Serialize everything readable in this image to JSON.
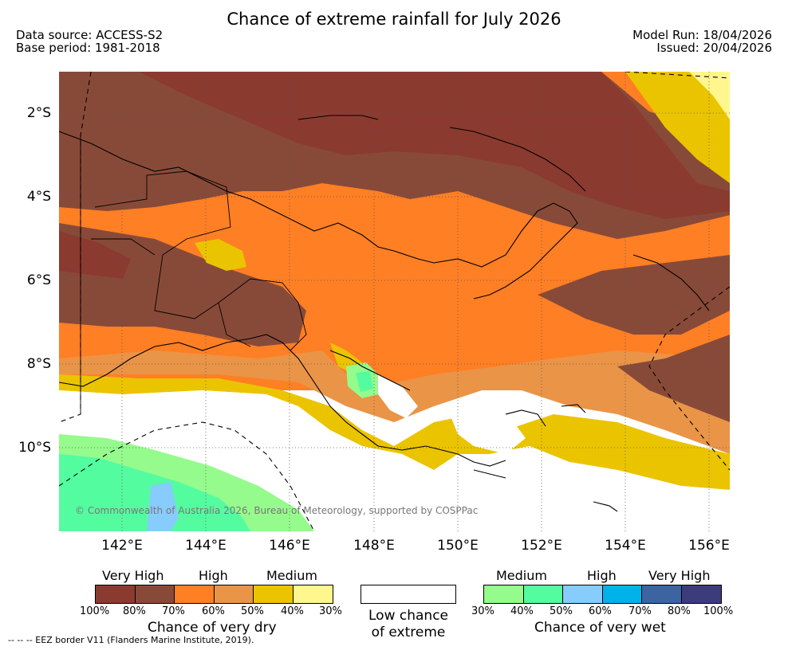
{
  "title": "Chance of extreme rainfall for July 2026",
  "meta": {
    "data_source": "Data source: ACCESS-S2",
    "base_period": "Base period: 1981-2018",
    "model_run": "Model Run: 18/04/2026",
    "issued": "Issued: 20/04/2026"
  },
  "map": {
    "lat_labels": [
      "2°S",
      "4°S",
      "6°S",
      "8°S",
      "10°S"
    ],
    "lon_labels": [
      "142°E",
      "144°E",
      "146°E",
      "148°E",
      "150°E",
      "152°E",
      "154°E",
      "156°E"
    ],
    "copyright": "© Commonwealth of Australia 2026, Bureau of Meteorology, supported by COSPPac"
  },
  "legend": {
    "dry": {
      "levels": [
        "Very High",
        "High",
        "Medium"
      ],
      "ticks": [
        "100%",
        "80%",
        "70%",
        "60%",
        "50%",
        "40%",
        "30%"
      ],
      "colors": [
        "#8b3a30",
        "#884a38",
        "#ff7f24",
        "#ea9447",
        "#ebc400",
        "#fff78e"
      ],
      "caption": "Chance of very dry"
    },
    "neutral": {
      "caption_line1": "Low chance",
      "caption_line2": "of extreme",
      "color": "#ffffff"
    },
    "wet": {
      "levels": [
        "Medium",
        "High",
        "Very High"
      ],
      "ticks": [
        "30%",
        "40%",
        "50%",
        "60%",
        "70%",
        "80%",
        "100%"
      ],
      "colors": [
        "#95fb8c",
        "#54fca0",
        "#86ccfc",
        "#00b2ea",
        "#3c64a0",
        "#3c3c7c"
      ],
      "caption": "Chance of very wet"
    }
  },
  "footnote": "--  --  -- EEZ border V11 (Flanders Marine Institute, 2019)."
}
